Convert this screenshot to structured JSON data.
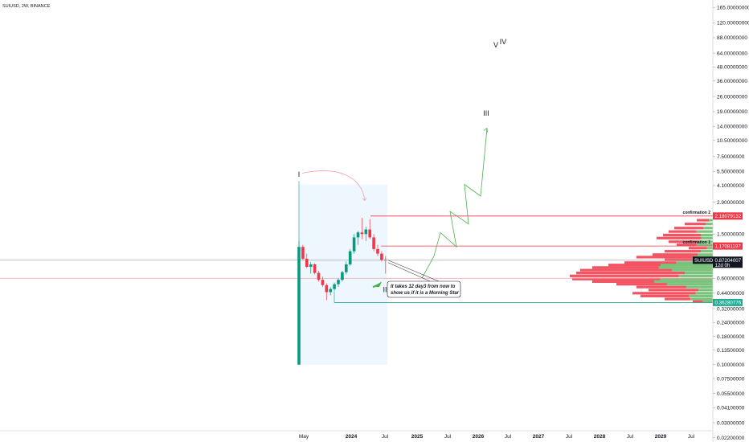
{
  "header": {
    "symbol_title": "SUIUSD, 2W, BINANCE"
  },
  "chart_data": {
    "type": "candlestick",
    "scale": "log",
    "ylim": [
      0.0139,
      188
    ],
    "x_tick_labels": [
      "May",
      "2024",
      "Jul",
      "2025",
      "Jul",
      "2026",
      "Jul",
      "2027",
      "Jul",
      "2028",
      "Jul",
      "2029",
      "Jul"
    ],
    "y_tick_labels": [
      "165.00000000",
      "120.00000000",
      "88.00000000",
      "64.00000000",
      "48.00000000",
      "36.00000000",
      "26.00000000",
      "19.00000000",
      "14.00000000",
      "10.50000000",
      "7.50000000",
      "5.50000000",
      "4.10000000",
      "2.90000000",
      "1.50000000",
      "0.60000000",
      "0.44000000",
      "0.32000000",
      "0.24000000",
      "0.18000000",
      "0.13500000",
      "0.10000000",
      "0.07500000",
      "0.05500000",
      "0.04100000",
      "0.03000000",
      "0.02200000",
      "0.01650000"
    ],
    "y_tick_values": [
      165,
      120,
      88,
      64,
      48,
      36,
      26,
      19,
      14,
      10.5,
      7.5,
      5.5,
      4.1,
      2.9,
      1.5,
      0.6,
      0.44,
      0.32,
      0.24,
      0.18,
      0.135,
      0.1,
      0.075,
      0.055,
      0.041,
      0.03,
      0.022,
      0.0165
    ],
    "candles": [
      {
        "o": 0.1,
        "h": 1.3,
        "l": 0.1,
        "c": 1.15
      },
      {
        "o": 1.15,
        "h": 1.2,
        "l": 0.87,
        "c": 0.9
      },
      {
        "o": 0.9,
        "h": 1.0,
        "l": 0.74,
        "c": 0.76
      },
      {
        "o": 0.76,
        "h": 0.84,
        "l": 0.66,
        "c": 0.8
      },
      {
        "o": 0.8,
        "h": 0.82,
        "l": 0.65,
        "c": 0.67
      },
      {
        "o": 0.67,
        "h": 0.7,
        "l": 0.56,
        "c": 0.58
      },
      {
        "o": 0.58,
        "h": 0.62,
        "l": 0.5,
        "c": 0.52
      },
      {
        "o": 0.52,
        "h": 0.54,
        "l": 0.38,
        "c": 0.45
      },
      {
        "o": 0.45,
        "h": 0.5,
        "l": 0.42,
        "c": 0.48
      },
      {
        "o": 0.48,
        "h": 0.55,
        "l": 0.46,
        "c": 0.53
      },
      {
        "o": 0.53,
        "h": 0.6,
        "l": 0.5,
        "c": 0.58
      },
      {
        "o": 0.58,
        "h": 0.7,
        "l": 0.56,
        "c": 0.68
      },
      {
        "o": 0.68,
        "h": 0.85,
        "l": 0.65,
        "c": 0.8
      },
      {
        "o": 0.8,
        "h": 1.1,
        "l": 0.78,
        "c": 1.05
      },
      {
        "o": 1.05,
        "h": 1.5,
        "l": 1.0,
        "c": 1.4
      },
      {
        "o": 1.4,
        "h": 1.6,
        "l": 1.2,
        "c": 1.55
      },
      {
        "o": 1.55,
        "h": 2.1,
        "l": 1.35,
        "c": 1.5
      },
      {
        "o": 1.5,
        "h": 1.75,
        "l": 1.3,
        "c": 1.65
      },
      {
        "o": 1.65,
        "h": 2.05,
        "l": 1.35,
        "c": 1.4
      },
      {
        "o": 1.4,
        "h": 1.5,
        "l": 1.05,
        "c": 1.1
      },
      {
        "o": 1.1,
        "h": 1.2,
        "l": 0.95,
        "c": 1.0
      },
      {
        "o": 1.0,
        "h": 1.05,
        "l": 0.85,
        "c": 0.88
      },
      {
        "o": 0.88,
        "h": 0.95,
        "l": 0.66,
        "c": 0.87
      }
    ],
    "wave_labels": [
      {
        "text": "I",
        "price": 4.9
      },
      {
        "text": "II",
        "price": 0.45
      },
      {
        "text": "III",
        "price": 17.5
      },
      {
        "text": "V",
        "price": 72
      },
      {
        "text": "IV",
        "price": 77
      }
    ],
    "projection": [
      0.6,
      0.95,
      1.55,
      1.15,
      2.4,
      1.85,
      4.2,
      3.3,
      13.5
    ],
    "levels": [
      {
        "label": "confirmation 2",
        "price": 2.18079132,
        "value_text": "2.18079132",
        "color": "#f23645"
      },
      {
        "label": "confirmation 1",
        "price": 1.17081197,
        "value_text": "1.17081197",
        "color": "#f23645"
      },
      {
        "label": "",
        "price": 0.6,
        "value_text": "",
        "color": "#f7a1a8"
      },
      {
        "label": "",
        "price": 0.36280776,
        "value_text": "0.36280776",
        "color": "#22ab94"
      }
    ],
    "current_price": {
      "symbol": "SUIUSD",
      "value_text": "0.87204007",
      "countdown": "12d 0h",
      "price": 0.87204007
    },
    "annotation": {
      "line1": "It takes 12 day3 from now to",
      "line2": "show us if it is a Morning Star"
    },
    "colors": {
      "up": "#089981",
      "down": "#f23645",
      "projection": "#4caf50",
      "highlight": "#e3f2fd"
    }
  }
}
